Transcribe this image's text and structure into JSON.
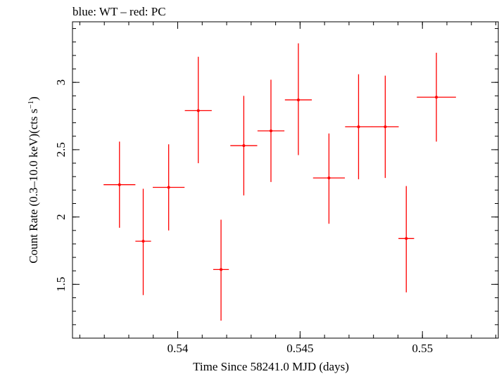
{
  "chart_data": {
    "type": "scatter",
    "title": "blue: WT – red: PC",
    "xlabel": "Time Since 58241.0 MJD (days)",
    "ylabel_main": "Count Rate (0.3–10.0 keV)(cts s",
    "ylabel_sup": "−1",
    "ylabel_close": ")",
    "xlim": [
      0.5357,
      0.5531
    ],
    "ylim": [
      1.1,
      3.45
    ],
    "grid": false,
    "xticks_major": [
      {
        "value": 0.54,
        "label": "0.54"
      },
      {
        "value": 0.545,
        "label": "0.545"
      },
      {
        "value": 0.55,
        "label": "0.55"
      }
    ],
    "xticks_minor_step": 0.001,
    "yticks_major": [
      {
        "value": 1.5,
        "label": "1.5"
      },
      {
        "value": 2.0,
        "label": "2"
      },
      {
        "value": 2.5,
        "label": "2.5"
      },
      {
        "value": 3.0,
        "label": "3"
      }
    ],
    "yticks_minor_step": 0.1,
    "series": [
      {
        "color": "#ff0000",
        "points": [
          {
            "x": 0.53762,
            "xerr": 0.00065,
            "y": 2.24,
            "yerr_lo": 0.32,
            "yerr_hi": 0.32
          },
          {
            "x": 0.53859,
            "xerr": 0.00032,
            "y": 1.82,
            "yerr_lo": 0.4,
            "yerr_hi": 0.39
          },
          {
            "x": 0.53963,
            "xerr": 0.00065,
            "y": 2.22,
            "yerr_lo": 0.32,
            "yerr_hi": 0.32
          },
          {
            "x": 0.54084,
            "xerr": 0.00055,
            "y": 2.79,
            "yerr_lo": 0.39,
            "yerr_hi": 0.4
          },
          {
            "x": 0.54177,
            "xerr": 0.00032,
            "y": 1.61,
            "yerr_lo": 0.38,
            "yerr_hi": 0.37
          },
          {
            "x": 0.5427,
            "xerr": 0.00055,
            "y": 2.53,
            "yerr_lo": 0.37,
            "yerr_hi": 0.37
          },
          {
            "x": 0.54381,
            "xerr": 0.00055,
            "y": 2.64,
            "yerr_lo": 0.38,
            "yerr_hi": 0.38
          },
          {
            "x": 0.54493,
            "xerr": 0.00055,
            "y": 2.87,
            "yerr_lo": 0.41,
            "yerr_hi": 0.42
          },
          {
            "x": 0.54618,
            "xerr": 0.00065,
            "y": 2.29,
            "yerr_lo": 0.34,
            "yerr_hi": 0.33
          },
          {
            "x": 0.54739,
            "xerr": 0.00055,
            "y": 2.67,
            "yerr_lo": 0.39,
            "yerr_hi": 0.39
          },
          {
            "x": 0.54848,
            "xerr": 0.00055,
            "y": 2.67,
            "yerr_lo": 0.38,
            "yerr_hi": 0.38
          },
          {
            "x": 0.54934,
            "xerr": 0.00032,
            "y": 1.84,
            "yerr_lo": 0.4,
            "yerr_hi": 0.39
          },
          {
            "x": 0.55057,
            "xerr": 0.0008,
            "y": 2.89,
            "yerr_lo": 0.33,
            "yerr_hi": 0.33
          }
        ]
      }
    ]
  }
}
